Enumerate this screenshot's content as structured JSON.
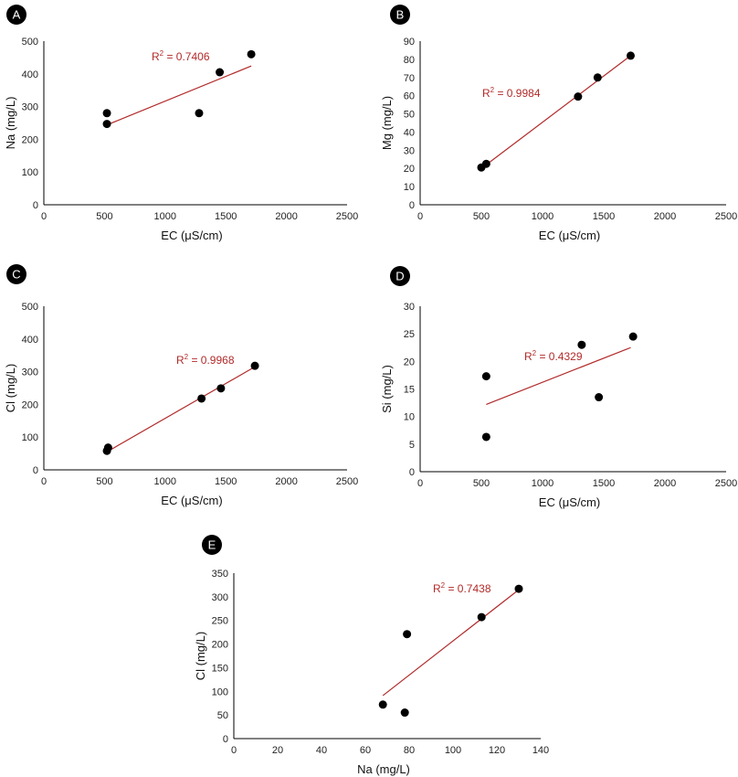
{
  "chart_data": [
    {
      "type": "scatter",
      "panel_label": "A",
      "xlabel": "EC (μS/cm)",
      "ylabel": "Na (mg/L)",
      "xlim": [
        0,
        2500
      ],
      "ylim": [
        0,
        500
      ],
      "xticks": [
        0,
        500,
        1000,
        1500,
        2000,
        2500
      ],
      "yticks": [
        0,
        100,
        200,
        300,
        400,
        500
      ],
      "points": [
        [
          520,
          280
        ],
        [
          520,
          247
        ],
        [
          1280,
          280
        ],
        [
          1450,
          405
        ],
        [
          1710,
          460
        ]
      ],
      "trendline": [
        [
          520,
          244
        ],
        [
          1710,
          424
        ]
      ],
      "r2_label": "R2 = 0.7406"
    },
    {
      "type": "scatter",
      "panel_label": "B",
      "xlabel": "EC (μS/cm)",
      "ylabel": "Mg (mg/L)",
      "xlim": [
        0,
        2500
      ],
      "ylim": [
        0,
        90
      ],
      "xticks": [
        0,
        500,
        1000,
        1500,
        2000,
        2500
      ],
      "yticks": [
        0,
        10,
        20,
        30,
        40,
        50,
        60,
        70,
        80,
        90
      ],
      "points": [
        [
          500,
          20.5
        ],
        [
          540,
          22.5
        ],
        [
          1290,
          59.5
        ],
        [
          1450,
          70
        ],
        [
          1720,
          82
        ]
      ],
      "trendline": [
        [
          520,
          21
        ],
        [
          1720,
          82
        ]
      ],
      "r2_label": "R2 = 0.9984"
    },
    {
      "type": "scatter",
      "panel_label": "C",
      "xlabel": "EC (μS/cm)",
      "ylabel": "Cl (mg/L)",
      "xlim": [
        0,
        2500
      ],
      "ylim": [
        0,
        500
      ],
      "xticks": [
        0,
        500,
        1000,
        1500,
        2000,
        2500
      ],
      "yticks": [
        0,
        100,
        200,
        300,
        400,
        500
      ],
      "points": [
        [
          520,
          58
        ],
        [
          530,
          68
        ],
        [
          1300,
          218
        ],
        [
          1460,
          249
        ],
        [
          1740,
          318
        ]
      ],
      "trendline": [
        [
          520,
          55
        ],
        [
          1740,
          315
        ]
      ],
      "r2_label": "R2 = 0.9968"
    },
    {
      "type": "scatter",
      "panel_label": "D",
      "xlabel": "EC (μS/cm)",
      "ylabel": "Si (mg/L)",
      "xlim": [
        0,
        2500
      ],
      "ylim": [
        0,
        30
      ],
      "xticks": [
        0,
        500,
        1000,
        1500,
        2000,
        2500
      ],
      "yticks": [
        0,
        5,
        10,
        15,
        20,
        25,
        30
      ],
      "points": [
        [
          540,
          6.3
        ],
        [
          540,
          17.3
        ],
        [
          1320,
          23
        ],
        [
          1460,
          13.5
        ],
        [
          1740,
          24.5
        ]
      ],
      "trendline": [
        [
          540,
          12.2
        ],
        [
          1720,
          22.5
        ]
      ],
      "r2_label": "R2 = 0.4329"
    },
    {
      "type": "scatter",
      "panel_label": "E",
      "xlabel": "Na (mg/L)",
      "ylabel": "Cl (mg/L)",
      "xlim": [
        0,
        140
      ],
      "ylim": [
        0,
        350
      ],
      "xticks": [
        0,
        20,
        40,
        60,
        80,
        100,
        120,
        140
      ],
      "yticks": [
        0,
        50,
        100,
        150,
        200,
        250,
        300,
        350
      ],
      "points": [
        [
          68,
          72
        ],
        [
          78,
          55
        ],
        [
          79,
          221
        ],
        [
          113,
          257
        ],
        [
          130,
          317
        ]
      ],
      "trendline": [
        [
          68,
          91
        ],
        [
          130,
          315
        ]
      ],
      "r2_label": "R2 = 0.7438"
    }
  ]
}
